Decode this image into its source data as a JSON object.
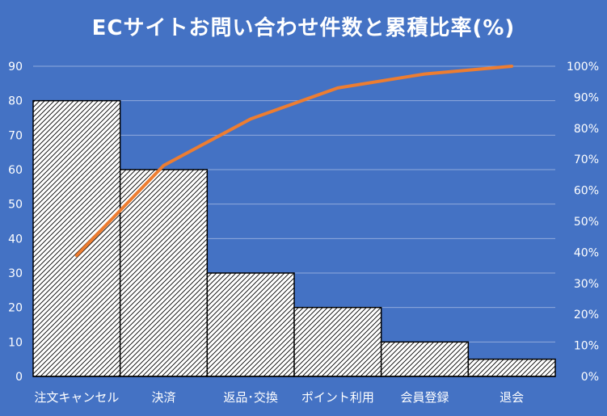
{
  "chart_data": {
    "type": "bar",
    "title": "ECサイトお問い合わせ件数と累積比率(%)",
    "categories": [
      "注文キャンセル",
      "決済",
      "返品･交換",
      "ポイント利用",
      "会員登録",
      "退会"
    ],
    "series": [
      {
        "type": "bar",
        "values": [
          80,
          60,
          30,
          20,
          10,
          5
        ]
      },
      {
        "type": "line",
        "values": [
          39,
          68,
          83,
          93,
          97.5,
          100
        ]
      }
    ],
    "y_left": {
      "range": [
        0,
        90
      ],
      "ticks": [
        "0",
        "10",
        "20",
        "30",
        "40",
        "50",
        "60",
        "70",
        "80",
        "90"
      ]
    },
    "y_right": {
      "range": [
        0,
        100
      ],
      "ticks": [
        "0%",
        "10%",
        "20%",
        "30%",
        "40%",
        "50%",
        "60%",
        "70%",
        "80%",
        "90%",
        "100%"
      ]
    },
    "grid": true,
    "legend": "none",
    "colors": {
      "background": "#4472C4",
      "bar_fill": "#FFFFFF",
      "bar_hatch": "#000000",
      "line": "#ED7D31",
      "gridline": "#8FAADC",
      "text": "#FFFFFF"
    }
  }
}
